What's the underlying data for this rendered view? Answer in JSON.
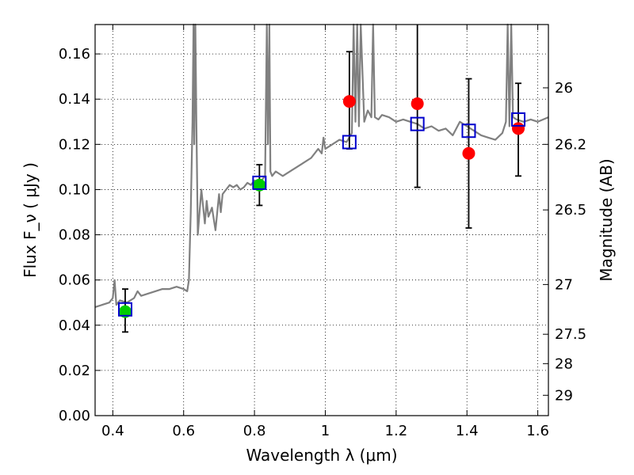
{
  "chart_data": {
    "type": "scatter",
    "title": "",
    "xlabel": "Wavelength  λ (μm)",
    "ylabel": "Flux  F_ν  ( μJy )",
    "y2label": "Magnitude (AB)",
    "xlim": [
      0.35,
      1.63
    ],
    "ylim": [
      0.0,
      0.173
    ],
    "grid": true,
    "x_ticks": [
      0.4,
      0.6,
      0.8,
      1.0,
      1.2,
      1.4,
      1.6
    ],
    "x_tick_labels": [
      "0.4",
      "0.6",
      "0.8",
      "1",
      "1.2",
      "1.4",
      "1.6"
    ],
    "y_ticks": [
      0.0,
      0.02,
      0.04,
      0.06,
      0.08,
      0.1,
      0.12,
      0.14,
      0.16
    ],
    "y_tick_labels": [
      "0.00",
      "0.02",
      "0.04",
      "0.06",
      "0.08",
      "0.10",
      "0.12",
      "0.14",
      "0.16"
    ],
    "y2_ticks": [
      {
        "label": "26",
        "flux": 0.145
      },
      {
        "label": "26.2",
        "flux": 0.12
      },
      {
        "label": "26.5",
        "flux": 0.091
      },
      {
        "label": "27",
        "flux": 0.058
      },
      {
        "label": "27.5",
        "flux": 0.036
      },
      {
        "label": "28",
        "flux": 0.023
      },
      {
        "label": "29",
        "flux": 0.009
      }
    ],
    "colors": {
      "model": "#808080",
      "observed_blue": "#00cc00",
      "observed_red": "#ff0000",
      "model_photometry": "#0000cc",
      "errorbar": "#000000"
    },
    "series": [
      {
        "marker": "circle",
        "color": "#00cc00",
        "points": [
          {
            "x": 0.435,
            "y": 0.046,
            "yerr_low": 0.037,
            "yerr_high": 0.056
          },
          {
            "x": 0.814,
            "y": 0.102,
            "yerr_low": 0.093,
            "yerr_high": 0.111
          }
        ]
      },
      {
        "marker": "circle",
        "color": "#ff0000",
        "points": [
          {
            "x": 1.068,
            "y": 0.139,
            "yerr_low": 0.118,
            "yerr_high": 0.161
          },
          {
            "x": 1.26,
            "y": 0.138,
            "yerr_low": 0.101,
            "yerr_high": 0.175
          },
          {
            "x": 1.405,
            "y": 0.116,
            "yerr_low": 0.083,
            "yerr_high": 0.149
          },
          {
            "x": 1.545,
            "y": 0.127,
            "yerr_low": 0.106,
            "yerr_high": 0.147
          }
        ]
      },
      {
        "marker": "square-open",
        "color": "#0000cc",
        "points": [
          {
            "x": 0.435,
            "y": 0.047
          },
          {
            "x": 0.814,
            "y": 0.103
          },
          {
            "x": 1.068,
            "y": 0.121
          },
          {
            "x": 1.26,
            "y": 0.129
          },
          {
            "x": 1.405,
            "y": 0.126
          },
          {
            "x": 1.545,
            "y": 0.131
          }
        ]
      },
      {
        "marker": "line",
        "color": "#808080",
        "x": [
          0.35,
          0.37,
          0.39,
          0.4,
          0.405,
          0.41,
          0.42,
          0.44,
          0.46,
          0.47,
          0.48,
          0.5,
          0.52,
          0.54,
          0.56,
          0.58,
          0.6,
          0.61,
          0.615,
          0.62,
          0.625,
          0.628,
          0.63,
          0.633,
          0.636,
          0.64,
          0.645,
          0.65,
          0.66,
          0.665,
          0.67,
          0.68,
          0.69,
          0.7,
          0.705,
          0.71,
          0.72,
          0.73,
          0.74,
          0.75,
          0.76,
          0.77,
          0.78,
          0.79,
          0.8,
          0.81,
          0.82,
          0.83,
          0.835,
          0.838,
          0.842,
          0.845,
          0.85,
          0.86,
          0.87,
          0.88,
          0.9,
          0.92,
          0.94,
          0.96,
          0.98,
          0.99,
          0.995,
          1.0,
          1.02,
          1.04,
          1.06,
          1.075,
          1.08,
          1.085,
          1.09,
          1.095,
          1.1,
          1.11,
          1.12,
          1.13,
          1.135,
          1.14,
          1.15,
          1.16,
          1.18,
          1.2,
          1.22,
          1.24,
          1.26,
          1.28,
          1.3,
          1.32,
          1.34,
          1.36,
          1.38,
          1.4,
          1.42,
          1.44,
          1.46,
          1.48,
          1.5,
          1.51,
          1.515,
          1.52,
          1.525,
          1.53,
          1.54,
          1.56,
          1.58,
          1.6,
          1.63
        ],
        "y": [
          0.048,
          0.049,
          0.05,
          0.052,
          0.06,
          0.049,
          0.051,
          0.05,
          0.052,
          0.055,
          0.053,
          0.054,
          0.055,
          0.056,
          0.056,
          0.057,
          0.056,
          0.055,
          0.06,
          0.09,
          0.13,
          0.175,
          0.12,
          0.175,
          0.13,
          0.08,
          0.09,
          0.1,
          0.085,
          0.095,
          0.088,
          0.092,
          0.082,
          0.098,
          0.09,
          0.098,
          0.1,
          0.102,
          0.101,
          0.102,
          0.1,
          0.101,
          0.103,
          0.102,
          0.104,
          0.103,
          0.104,
          0.106,
          0.175,
          0.12,
          0.175,
          0.108,
          0.106,
          0.108,
          0.107,
          0.106,
          0.108,
          0.11,
          0.112,
          0.114,
          0.118,
          0.116,
          0.123,
          0.118,
          0.12,
          0.122,
          0.121,
          0.125,
          0.175,
          0.13,
          0.175,
          0.128,
          0.175,
          0.13,
          0.135,
          0.132,
          0.175,
          0.132,
          0.131,
          0.133,
          0.132,
          0.13,
          0.131,
          0.13,
          0.129,
          0.127,
          0.128,
          0.126,
          0.127,
          0.124,
          0.13,
          0.128,
          0.126,
          0.124,
          0.123,
          0.122,
          0.125,
          0.13,
          0.175,
          0.128,
          0.175,
          0.132,
          0.131,
          0.13,
          0.131,
          0.13,
          0.132
        ]
      }
    ]
  }
}
